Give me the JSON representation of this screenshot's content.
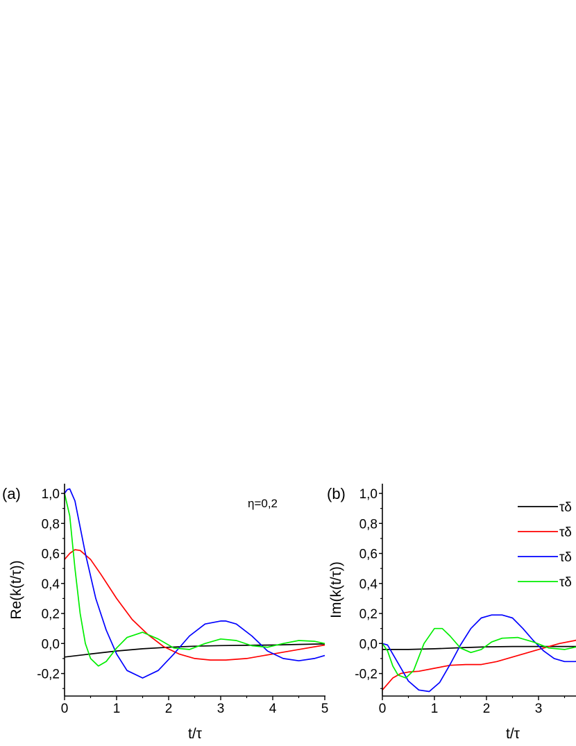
{
  "chart_data": [
    {
      "type": "line",
      "panel_label": "(a)",
      "ylabel": "Re(k(t/τ))",
      "xlabel": "t/τ",
      "annotation": "η=0,2",
      "xlim": [
        0,
        5
      ],
      "ylim": [
        -0.35,
        1.05
      ],
      "x_ticks": [
        {
          "value": 0,
          "label": "0"
        },
        {
          "value": 1,
          "label": "1"
        },
        {
          "value": 2,
          "label": "2"
        },
        {
          "value": 3,
          "label": "3"
        },
        {
          "value": 4,
          "label": "4"
        },
        {
          "value": 5,
          "label": "5"
        }
      ],
      "y_ticks": [
        {
          "value": -0.2,
          "label": "-0,2"
        },
        {
          "value": 0.0,
          "label": "0,0"
        },
        {
          "value": 0.2,
          "label": "0,2"
        },
        {
          "value": 0.4,
          "label": "0,4"
        },
        {
          "value": 0.6,
          "label": "0,6"
        },
        {
          "value": 0.8,
          "label": "0,8"
        },
        {
          "value": 1.0,
          "label": "1,0"
        }
      ],
      "series": [
        {
          "color": "#000000",
          "x": [
            0,
            0.5,
            1,
            1.5,
            2,
            2.5,
            3,
            3.5,
            4,
            4.5,
            5
          ],
          "y": [
            -0.09,
            -0.07,
            -0.05,
            -0.035,
            -0.025,
            -0.018,
            -0.014,
            -0.012,
            -0.01,
            -0.006,
            -0.003
          ]
        },
        {
          "color": "#ff0000",
          "x": [
            0,
            0.1,
            0.2,
            0.3,
            0.5,
            0.7,
            1,
            1.3,
            1.6,
            1.9,
            2.2,
            2.5,
            2.8,
            3.1,
            3.5,
            4,
            4.5,
            5
          ],
          "y": [
            0.56,
            0.6,
            0.625,
            0.62,
            0.56,
            0.46,
            0.3,
            0.16,
            0.06,
            -0.02,
            -0.07,
            -0.1,
            -0.11,
            -0.11,
            -0.1,
            -0.07,
            -0.04,
            -0.01
          ]
        },
        {
          "color": "#0000ff",
          "x": [
            0,
            0.05,
            0.1,
            0.2,
            0.4,
            0.6,
            0.8,
            1,
            1.2,
            1.5,
            1.8,
            2.1,
            2.4,
            2.7,
            3,
            3.1,
            3.3,
            3.6,
            3.9,
            4.2,
            4.5,
            4.8,
            5
          ],
          "y": [
            1.0,
            1.025,
            1.03,
            0.95,
            0.6,
            0.3,
            0.09,
            -0.07,
            -0.18,
            -0.23,
            -0.18,
            -0.07,
            0.05,
            0.13,
            0.15,
            0.15,
            0.13,
            0.05,
            -0.05,
            -0.1,
            -0.115,
            -0.1,
            -0.08
          ]
        },
        {
          "color": "#00ee00",
          "x": [
            0,
            0.1,
            0.2,
            0.3,
            0.4,
            0.5,
            0.65,
            0.8,
            1,
            1.2,
            1.5,
            1.8,
            2.1,
            2.4,
            2.7,
            3,
            3.3,
            3.6,
            3.9,
            4.2,
            4.5,
            4.8,
            5
          ],
          "y": [
            1.0,
            0.85,
            0.5,
            0.2,
            0.0,
            -0.1,
            -0.15,
            -0.12,
            -0.03,
            0.04,
            0.075,
            0.03,
            -0.03,
            -0.04,
            0.0,
            0.03,
            0.02,
            -0.015,
            -0.025,
            0.0,
            0.02,
            0.015,
            0.0
          ]
        }
      ]
    },
    {
      "type": "line",
      "panel_label": "(b)",
      "ylabel": "Im(k(t/τ))",
      "xlabel": "t/τ",
      "xlim": [
        0,
        5
      ],
      "ylim": [
        -0.35,
        1.05
      ],
      "x_ticks": [
        {
          "value": 0,
          "label": "0"
        },
        {
          "value": 1,
          "label": "1"
        },
        {
          "value": 2,
          "label": "2"
        },
        {
          "value": 3,
          "label": "3"
        }
      ],
      "y_ticks": [
        {
          "value": -0.2,
          "label": "-0,2"
        },
        {
          "value": 0.0,
          "label": "0,0"
        },
        {
          "value": 0.2,
          "label": "0,2"
        },
        {
          "value": 0.4,
          "label": "0,4"
        },
        {
          "value": 0.6,
          "label": "0,6"
        },
        {
          "value": 0.8,
          "label": "0,8"
        },
        {
          "value": 1.0,
          "label": "1,0"
        }
      ],
      "legend": {
        "position": "top-right",
        "entries": [
          {
            "label": "τδ",
            "color": "#000000"
          },
          {
            "label": "τδ",
            "color": "#ff0000"
          },
          {
            "label": "τδ",
            "color": "#0000ff"
          },
          {
            "label": "τδ",
            "color": "#00ee00"
          }
        ]
      },
      "series": [
        {
          "color": "#000000",
          "x": [
            0,
            0.5,
            1,
            1.5,
            2,
            2.5,
            3,
            3.5,
            4
          ],
          "y": [
            -0.04,
            -0.04,
            -0.035,
            -0.028,
            -0.022,
            -0.02,
            -0.02,
            -0.02,
            -0.02
          ]
        },
        {
          "color": "#ff0000",
          "x": [
            0,
            0.1,
            0.2,
            0.35,
            0.5,
            0.7,
            1,
            1.3,
            1.6,
            1.9,
            2.2,
            2.5,
            2.8,
            3.1,
            3.4,
            3.7,
            3.9
          ],
          "y": [
            -0.31,
            -0.27,
            -0.23,
            -0.2,
            -0.19,
            -0.185,
            -0.165,
            -0.145,
            -0.14,
            -0.14,
            -0.12,
            -0.09,
            -0.06,
            -0.03,
            0.0,
            0.02,
            0.04
          ]
        },
        {
          "color": "#0000ff",
          "x": [
            0,
            0.1,
            0.2,
            0.35,
            0.5,
            0.7,
            0.9,
            1.1,
            1.3,
            1.5,
            1.7,
            1.9,
            2.1,
            2.3,
            2.5,
            2.7,
            2.9,
            3.1,
            3.3,
            3.5,
            3.7,
            3.9
          ],
          "y": [
            0.0,
            -0.01,
            -0.07,
            -0.16,
            -0.25,
            -0.31,
            -0.32,
            -0.26,
            -0.14,
            -0.01,
            0.1,
            0.17,
            0.19,
            0.19,
            0.17,
            0.1,
            0.02,
            -0.05,
            -0.1,
            -0.12,
            -0.12,
            -0.11
          ]
        },
        {
          "color": "#00ee00",
          "x": [
            0,
            0.1,
            0.2,
            0.3,
            0.45,
            0.6,
            0.8,
            1,
            1.15,
            1.3,
            1.5,
            1.7,
            1.9,
            2.1,
            2.3,
            2.6,
            2.9,
            3.2,
            3.5,
            3.7,
            3.9
          ],
          "y": [
            0.0,
            -0.05,
            -0.15,
            -0.21,
            -0.23,
            -0.18,
            0.0,
            0.1,
            0.1,
            0.05,
            -0.03,
            -0.06,
            -0.04,
            0.01,
            0.035,
            0.04,
            0.01,
            -0.03,
            -0.04,
            -0.025,
            -0.01
          ]
        }
      ]
    }
  ]
}
